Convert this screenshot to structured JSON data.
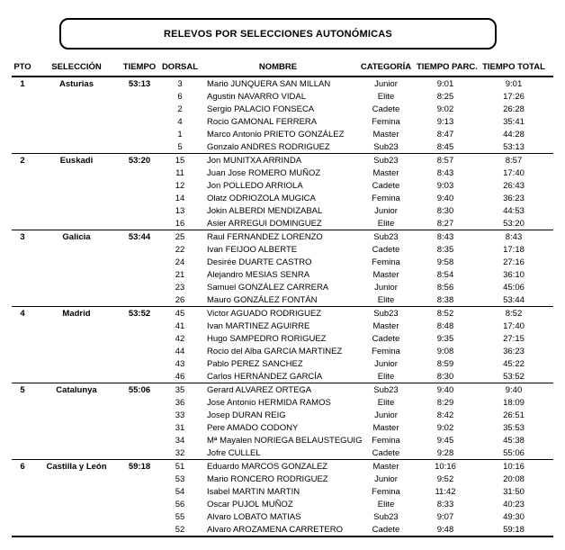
{
  "title": "RELEVOS POR SELECCIONES AUTONÓMICAS",
  "colors": {
    "background": "#ffffff",
    "text": "#000000",
    "lines": "#000000"
  },
  "table": {
    "headers": [
      "PTO",
      "SELECCIÓN",
      "TIEMPO",
      "DORSAL",
      "NOMBRE",
      "CATEGORÍA",
      "TIEMPO PARC.",
      "TIEMPO TOTAL"
    ],
    "groups": [
      {
        "pto": "1",
        "seleccion": "Asturias",
        "tiempo": "53:13",
        "runners": [
          {
            "dorsal": "3",
            "nombre": "Mario JUNQUERA SAN MILLAN",
            "categoria": "Junior",
            "parc": "9:01",
            "total": "9:01"
          },
          {
            "dorsal": "6",
            "nombre": "Agustin NAVARRO VIDAL",
            "categoria": "Elite",
            "parc": "8:25",
            "total": "17:26"
          },
          {
            "dorsal": "2",
            "nombre": "Sergio PALACIO FONSECA",
            "categoria": "Cadete",
            "parc": "9:02",
            "total": "26:28"
          },
          {
            "dorsal": "4",
            "nombre": "Rocio GAMONAL FERRERA",
            "categoria": "Femina",
            "parc": "9:13",
            "total": "35:41"
          },
          {
            "dorsal": "1",
            "nombre": "Marco Antonio PRIETO GONZÁLEZ",
            "categoria": "Master",
            "parc": "8:47",
            "total": "44:28"
          },
          {
            "dorsal": "5",
            "nombre": "Gonzalo ANDRES RODRIGUEZ",
            "categoria": "Sub23",
            "parc": "8:45",
            "total": "53:13"
          }
        ]
      },
      {
        "pto": "2",
        "seleccion": "Euskadi",
        "tiempo": "53:20",
        "runners": [
          {
            "dorsal": "15",
            "nombre": "Jon MUNITXA ARRINDA",
            "categoria": "Sub23",
            "parc": "8:57",
            "total": "8:57"
          },
          {
            "dorsal": "11",
            "nombre": "Juan Jose ROMERO MUÑOZ",
            "categoria": "Master",
            "parc": "8:43",
            "total": "17:40"
          },
          {
            "dorsal": "12",
            "nombre": "Jon POLLEDO ARRIOLA",
            "categoria": "Cadete",
            "parc": "9:03",
            "total": "26:43"
          },
          {
            "dorsal": "14",
            "nombre": "Olatz ODRIOZOLA MUGICA",
            "categoria": "Femina",
            "parc": "9:40",
            "total": "36:23"
          },
          {
            "dorsal": "13",
            "nombre": "Jokin ALBERDI MENDIZABAL",
            "categoria": "Junior",
            "parc": "8:30",
            "total": "44:53"
          },
          {
            "dorsal": "16",
            "nombre": "Asier ARREGUI DOMINGUEZ",
            "categoria": "Elite",
            "parc": "8:27",
            "total": "53:20"
          }
        ]
      },
      {
        "pto": "3",
        "seleccion": "Galicia",
        "tiempo": "53:44",
        "runners": [
          {
            "dorsal": "25",
            "nombre": "Raul FERNANDEZ LORENZO",
            "categoria": "Sub23",
            "parc": "8:43",
            "total": "8:43"
          },
          {
            "dorsal": "22",
            "nombre": "Ivan FEIJOO ALBERTE",
            "categoria": "Cadete",
            "parc": "8:35",
            "total": "17:18"
          },
          {
            "dorsal": "24",
            "nombre": "Desirée DUARTE CASTRO",
            "categoria": "Femina",
            "parc": "9:58",
            "total": "27:16"
          },
          {
            "dorsal": "21",
            "nombre": "Alejandro MESIAS SENRA",
            "categoria": "Master",
            "parc": "8:54",
            "total": "36:10"
          },
          {
            "dorsal": "23",
            "nombre": "Samuel GONZÁLEZ CARRERA",
            "categoria": "Junior",
            "parc": "8:56",
            "total": "45:06"
          },
          {
            "dorsal": "26",
            "nombre": "Mauro GONZÁLEZ FONTÁN",
            "categoria": "Elite",
            "parc": "8:38",
            "total": "53:44"
          }
        ]
      },
      {
        "pto": "4",
        "seleccion": "Madrid",
        "tiempo": "53:52",
        "runners": [
          {
            "dorsal": "45",
            "nombre": "Victor AGUADO RODRIGUEZ",
            "categoria": "Sub23",
            "parc": "8:52",
            "total": "8:52"
          },
          {
            "dorsal": "41",
            "nombre": "Ivan MARTINEZ AGUIRRE",
            "categoria": "Master",
            "parc": "8:48",
            "total": "17:40"
          },
          {
            "dorsal": "42",
            "nombre": "Hugo SAMPEDRO RORIGUEZ",
            "categoria": "Cadete",
            "parc": "9:35",
            "total": "27:15"
          },
          {
            "dorsal": "44",
            "nombre": "Rocio del Alba GARCIA MARTINEZ",
            "categoria": "Femina",
            "parc": "9:08",
            "total": "36:23"
          },
          {
            "dorsal": "43",
            "nombre": "Pablo PEREZ SANCHEZ",
            "categoria": "Junior",
            "parc": "8:59",
            "total": "45:22"
          },
          {
            "dorsal": "46",
            "nombre": "Carlos HERNÁNDEZ GARCÍA",
            "categoria": "Elite",
            "parc": "8:30",
            "total": "53:52"
          }
        ]
      },
      {
        "pto": "5",
        "seleccion": "Catalunya",
        "tiempo": "55:06",
        "runners": [
          {
            "dorsal": "35",
            "nombre": "Gerard ALVAREZ ORTEGA",
            "categoria": "Sub23",
            "parc": "9:40",
            "total": "9:40"
          },
          {
            "dorsal": "36",
            "nombre": "Jose Antonio HERMIDA RAMOS",
            "categoria": "Elite",
            "parc": "8:29",
            "total": "18:09"
          },
          {
            "dorsal": "33",
            "nombre": "Josep DURAN REIG",
            "categoria": "Junior",
            "parc": "8:42",
            "total": "26:51"
          },
          {
            "dorsal": "31",
            "nombre": "Pere AMADO CODONY",
            "categoria": "Master",
            "parc": "9:02",
            "total": "35:53"
          },
          {
            "dorsal": "34",
            "nombre": "Mª Mayalen NORIEGA BELAUSTEGUIG",
            "categoria": "Femina",
            "parc": "9:45",
            "total": "45:38"
          },
          {
            "dorsal": "32",
            "nombre": "Jofre CULLEL",
            "categoria": "Cadete",
            "parc": "9:28",
            "total": "55:06"
          }
        ]
      },
      {
        "pto": "6",
        "seleccion": "Castilla y León",
        "tiempo": "59:18",
        "runners": [
          {
            "dorsal": "51",
            "nombre": "Eduardo MARCOS GONZALEZ",
            "categoria": "Master",
            "parc": "10:16",
            "total": "10:16"
          },
          {
            "dorsal": "53",
            "nombre": "Mario RONCERO RODRIGUEZ",
            "categoria": "Junior",
            "parc": "9:52",
            "total": "20:08"
          },
          {
            "dorsal": "54",
            "nombre": "Isabel MARTIN MARTIN",
            "categoria": "Femina",
            "parc": "11:42",
            "total": "31:50"
          },
          {
            "dorsal": "56",
            "nombre": "Oscar PUJOL MUÑOZ",
            "categoria": "Elite",
            "parc": "8:33",
            "total": "40:23"
          },
          {
            "dorsal": "55",
            "nombre": "Alvaro LOBATO MATIAS",
            "categoria": "Sub23",
            "parc": "9:07",
            "total": "49:30"
          },
          {
            "dorsal": "52",
            "nombre": "Alvaro AROZAMENA CARRETERO",
            "categoria": "Cadete",
            "parc": "9:48",
            "total": "59:18"
          }
        ]
      }
    ]
  }
}
